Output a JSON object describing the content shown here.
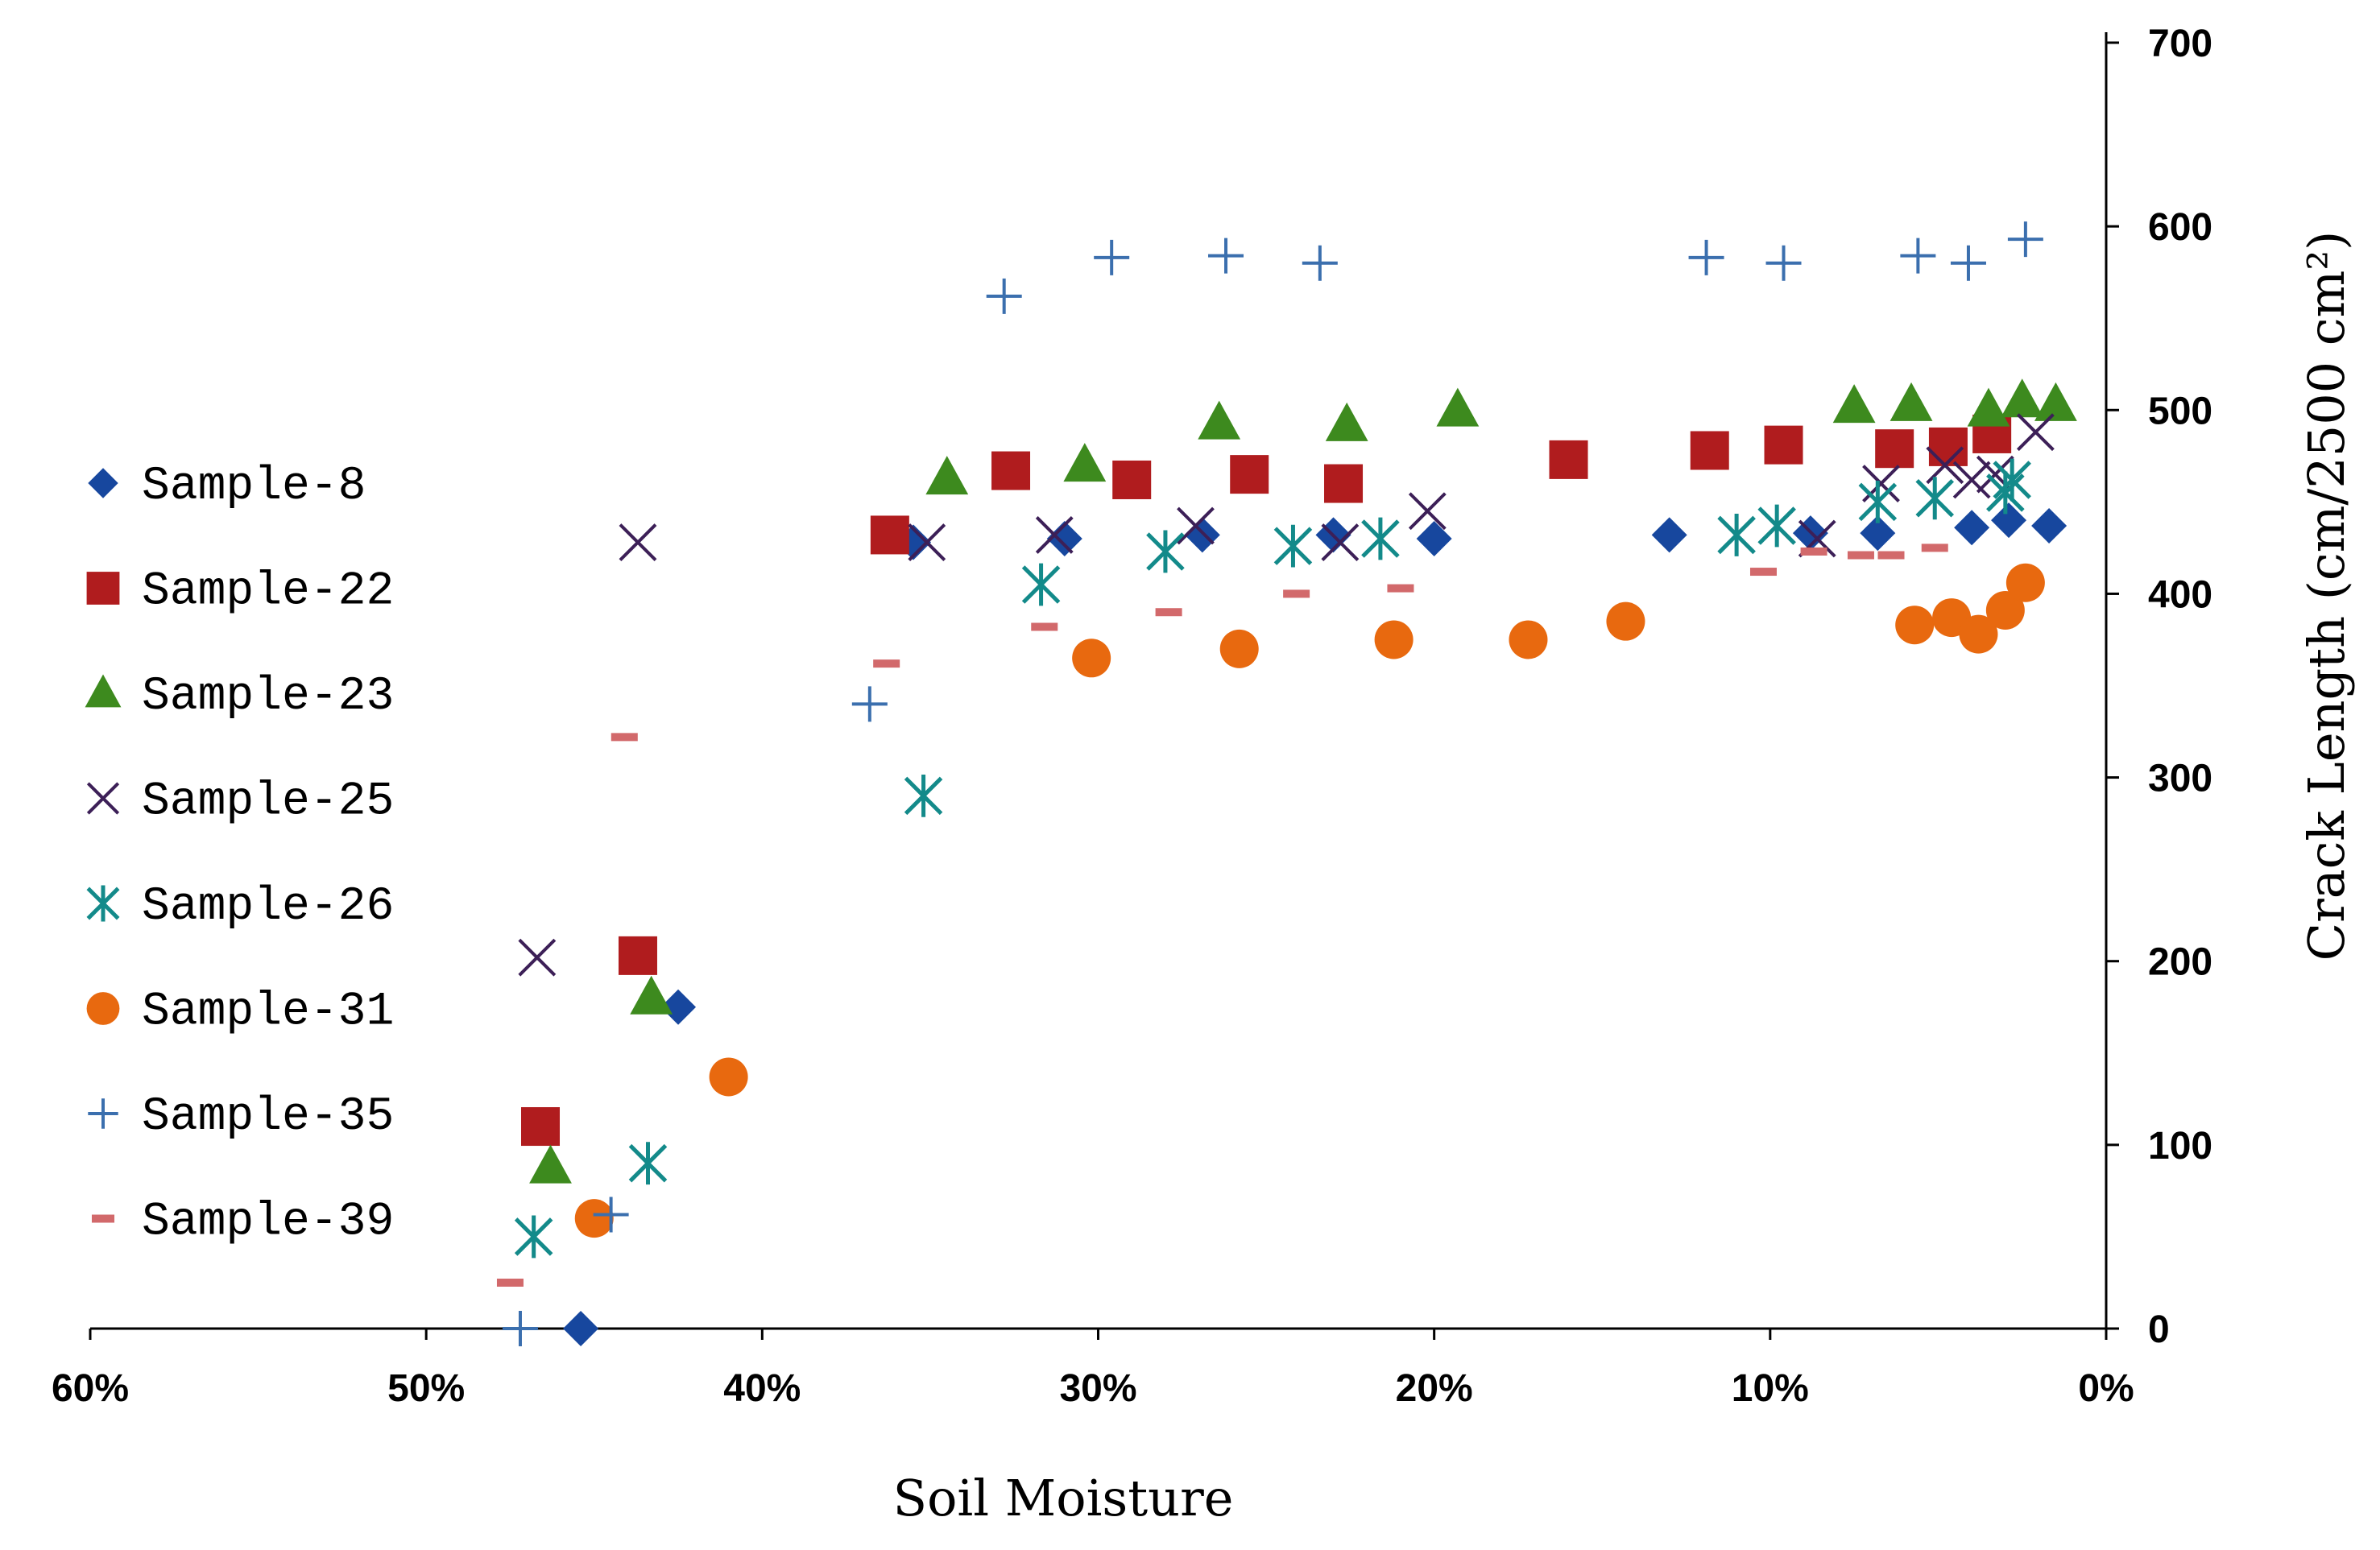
{
  "chart_data": {
    "type": "scatter",
    "xlabel": "Soil Moisture",
    "ylabel": "Crack Length (cm/2500 cm²)",
    "xlim": [
      60,
      0
    ],
    "ylim": [
      0,
      700
    ],
    "x_ticks": [
      60,
      50,
      40,
      30,
      20,
      10,
      0
    ],
    "x_tick_labels": [
      "60%",
      "50%",
      "40%",
      "30%",
      "20%",
      "10%",
      "0%"
    ],
    "y_ticks": [
      0,
      100,
      200,
      300,
      400,
      500,
      600,
      700
    ],
    "y_tick_labels": [
      "0",
      "100",
      "200",
      "300",
      "400",
      "500",
      "600",
      "700"
    ],
    "y_axis_position": "right",
    "legend_position": "left",
    "series": [
      {
        "name": "Sample-8",
        "marker": "diamond",
        "color": "#17479e",
        "points": [
          [
            45.4,
            0
          ],
          [
            42.5,
            175
          ],
          [
            35.5,
            428
          ],
          [
            31.0,
            430
          ],
          [
            26.9,
            432
          ],
          [
            23.0,
            432
          ],
          [
            20.0,
            430
          ],
          [
            13.0,
            432
          ],
          [
            8.8,
            433
          ],
          [
            6.8,
            433
          ],
          [
            4.0,
            436
          ],
          [
            2.9,
            440
          ],
          [
            1.7,
            437
          ]
        ]
      },
      {
        "name": "Sample-22",
        "marker": "square",
        "color": "#b01c1e",
        "points": [
          [
            46.6,
            110
          ],
          [
            43.7,
            203
          ],
          [
            36.2,
            432
          ],
          [
            32.6,
            467
          ],
          [
            29.0,
            462
          ],
          [
            25.5,
            465
          ],
          [
            22.7,
            460
          ],
          [
            16.0,
            473
          ],
          [
            11.8,
            478
          ],
          [
            9.6,
            481
          ],
          [
            6.3,
            479
          ],
          [
            4.7,
            480
          ],
          [
            3.4,
            487
          ]
        ]
      },
      {
        "name": "Sample-23",
        "marker": "triangle",
        "color": "#3d8a1e",
        "points": [
          [
            46.3,
            88
          ],
          [
            43.3,
            180
          ],
          [
            34.5,
            463
          ],
          [
            30.4,
            470
          ],
          [
            26.4,
            493
          ],
          [
            22.6,
            492
          ],
          [
            19.3,
            500
          ],
          [
            7.5,
            502
          ],
          [
            5.8,
            503
          ],
          [
            3.5,
            500
          ],
          [
            2.5,
            505
          ],
          [
            1.5,
            503
          ]
        ]
      },
      {
        "name": "Sample-25",
        "marker": "x",
        "color": "#3c1f57",
        "points": [
          [
            46.7,
            202
          ],
          [
            43.7,
            428
          ],
          [
            35.1,
            428
          ],
          [
            31.3,
            432
          ],
          [
            27.1,
            437
          ],
          [
            22.8,
            428
          ],
          [
            20.2,
            445
          ],
          [
            8.6,
            430
          ],
          [
            6.7,
            460
          ],
          [
            4.8,
            470
          ],
          [
            4.0,
            462
          ],
          [
            3.3,
            465
          ],
          [
            2.1,
            488
          ]
        ]
      },
      {
        "name": "Sample-26",
        "marker": "asterisk",
        "color": "#138a8a",
        "points": [
          [
            46.8,
            50
          ],
          [
            43.4,
            90
          ],
          [
            35.2,
            290
          ],
          [
            31.7,
            405
          ],
          [
            28.0,
            423
          ],
          [
            24.2,
            426
          ],
          [
            21.6,
            430
          ],
          [
            11.0,
            432
          ],
          [
            9.8,
            437
          ],
          [
            6.8,
            450
          ],
          [
            5.1,
            452
          ],
          [
            3.0,
            455
          ],
          [
            2.8,
            462
          ]
        ]
      },
      {
        "name": "Sample-31",
        "marker": "circle",
        "color": "#e8690f",
        "points": [
          [
            45.0,
            60
          ],
          [
            41.0,
            137
          ],
          [
            30.2,
            365
          ],
          [
            25.8,
            370
          ],
          [
            21.2,
            375
          ],
          [
            17.2,
            375
          ],
          [
            14.3,
            385
          ],
          [
            5.7,
            383
          ],
          [
            4.6,
            387
          ],
          [
            3.8,
            378
          ],
          [
            3.0,
            391
          ],
          [
            2.4,
            406
          ]
        ]
      },
      {
        "name": "Sample-35",
        "marker": "plus",
        "color": "#3b6fae",
        "points": [
          [
            47.2,
            0
          ],
          [
            44.5,
            62
          ],
          [
            36.8,
            340
          ],
          [
            32.8,
            562
          ],
          [
            29.6,
            583
          ],
          [
            26.2,
            584
          ],
          [
            23.4,
            580
          ],
          [
            11.9,
            583
          ],
          [
            9.6,
            580
          ],
          [
            5.6,
            584
          ],
          [
            4.1,
            580
          ],
          [
            2.4,
            593
          ]
        ]
      },
      {
        "name": "Sample-39",
        "marker": "dash",
        "color": "#d2696b",
        "points": [
          [
            47.5,
            25
          ],
          [
            44.1,
            322
          ],
          [
            36.3,
            362
          ],
          [
            31.6,
            382
          ],
          [
            27.9,
            390
          ],
          [
            24.1,
            400
          ],
          [
            21.0,
            403
          ],
          [
            10.2,
            412
          ],
          [
            8.7,
            423
          ],
          [
            7.3,
            421
          ],
          [
            6.4,
            421
          ],
          [
            5.1,
            425
          ]
        ]
      }
    ]
  }
}
